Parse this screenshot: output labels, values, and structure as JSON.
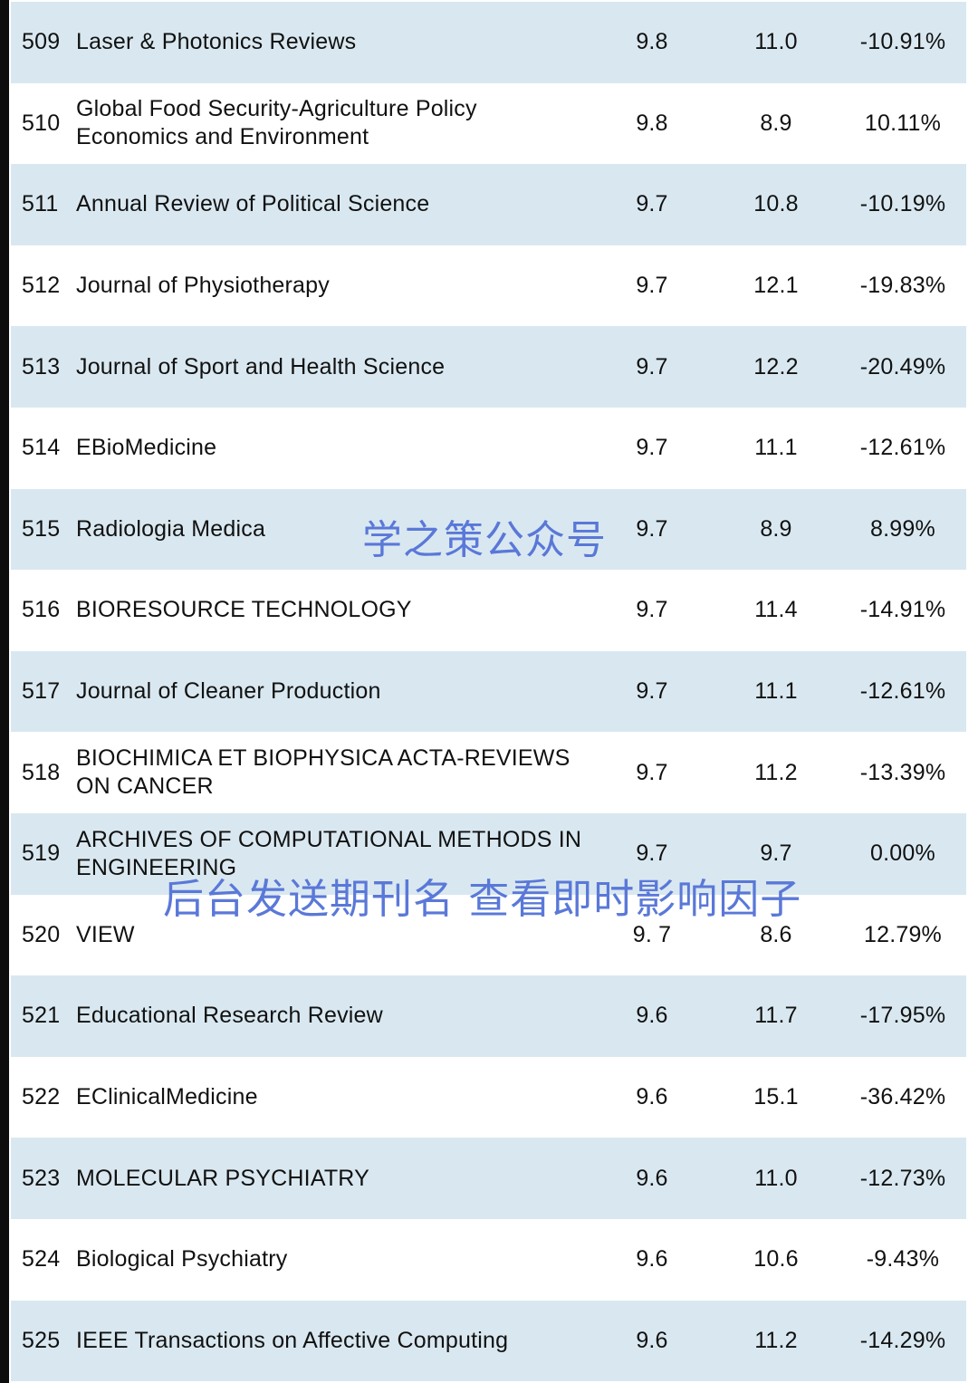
{
  "rows": [
    {
      "rank": "509",
      "name": "Laser & Photonics Reviews",
      "if_current": "9.8",
      "if_previous": "11.0",
      "change": "-10.91%"
    },
    {
      "rank": "510",
      "name": "Global Food Security-Agriculture Policy Economics and Environment",
      "if_current": "9.8",
      "if_previous": "8.9",
      "change": "10.11%"
    },
    {
      "rank": "511",
      "name": "Annual Review of Political Science",
      "if_current": "9.7",
      "if_previous": "10.8",
      "change": "-10.19%"
    },
    {
      "rank": "512",
      "name": "Journal of Physiotherapy",
      "if_current": "9.7",
      "if_previous": "12.1",
      "change": "-19.83%"
    },
    {
      "rank": "513",
      "name": "Journal of Sport and Health Science",
      "if_current": "9.7",
      "if_previous": "12.2",
      "change": "-20.49%"
    },
    {
      "rank": "514",
      "name": "EBioMedicine",
      "if_current": "9.7",
      "if_previous": "11.1",
      "change": "-12.61%"
    },
    {
      "rank": "515",
      "name": "Radiologia Medica",
      "if_current": "9.7",
      "if_previous": "8.9",
      "change": "8.99%"
    },
    {
      "rank": "516",
      "name": "BIORESOURCE TECHNOLOGY",
      "if_current": "9.7",
      "if_previous": "11.4",
      "change": "-14.91%"
    },
    {
      "rank": "517",
      "name": "Journal of Cleaner Production",
      "if_current": "9.7",
      "if_previous": "11.1",
      "change": "-12.61%"
    },
    {
      "rank": "518",
      "name": "BIOCHIMICA ET BIOPHYSICA ACTA-REVIEWS ON CANCER",
      "if_current": "9.7",
      "if_previous": "11.2",
      "change": "-13.39%"
    },
    {
      "rank": "519",
      "name": "ARCHIVES OF COMPUTATIONAL METHODS IN ENGINEERING",
      "if_current": "9.7",
      "if_previous": "9.7",
      "change": "0.00%"
    },
    {
      "rank": "520",
      "name": "VIEW",
      "if_current": "9. 7",
      "if_previous": "8.6",
      "change": "12.79%"
    },
    {
      "rank": "521",
      "name": "Educational Research Review",
      "if_current": "9.6",
      "if_previous": "11.7",
      "change": "-17.95%"
    },
    {
      "rank": "522",
      "name": "EClinicalMedicine",
      "if_current": "9.6",
      "if_previous": "15.1",
      "change": "-36.42%"
    },
    {
      "rank": "523",
      "name": "MOLECULAR PSYCHIATRY",
      "if_current": "9.6",
      "if_previous": "11.0",
      "change": "-12.73%"
    },
    {
      "rank": "524",
      "name": "Biological Psychiatry",
      "if_current": "9.6",
      "if_previous": "10.6",
      "change": "-9.43%"
    },
    {
      "rank": "525",
      "name": "IEEE Transactions on Affective Computing",
      "if_current": "9.6",
      "if_previous": "11.2",
      "change": "-14.29%"
    }
  ],
  "watermarks": {
    "account": "学之策公众号",
    "tagline": "后台发送期刊名 查看即时影响因子"
  },
  "colors": {
    "row_shaded": "#d9e8f0",
    "row_plain": "#ffffff",
    "watermark": "#5a78d8",
    "left_border": "#0d0d0d"
  }
}
